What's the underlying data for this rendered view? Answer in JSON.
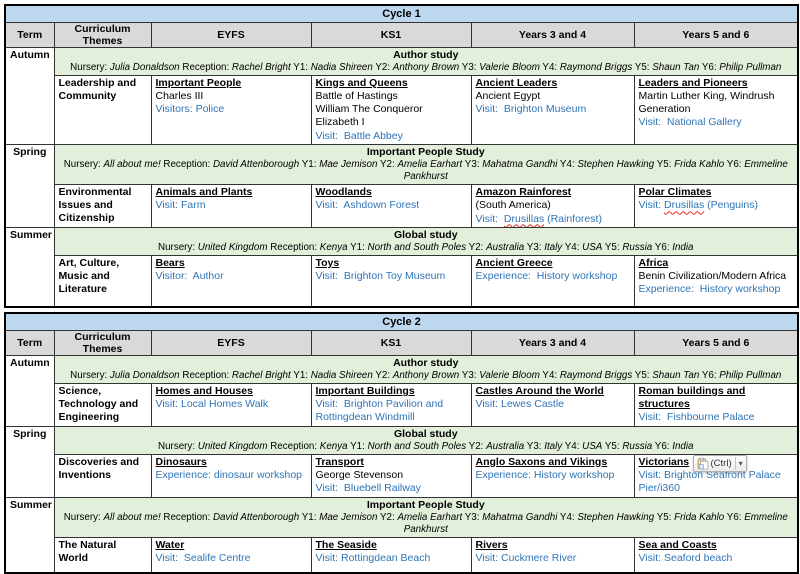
{
  "colors": {
    "cycle_header_blue": "#BDD7EE",
    "column_header_grey": "#D9D9D9",
    "study_row_green": "#E2EFDA",
    "link_blue": "#2E75B6",
    "spellcheck_red": "#E02B20"
  },
  "paste_popup": {
    "icon": "clipboard-icon",
    "label": "(Ctrl)",
    "caret": "▾"
  },
  "studies": {
    "author": {
      "title": "Author study",
      "names": [
        {
          "t": "Nursery: "
        },
        {
          "t": "Julia Donaldson",
          "i": 1
        },
        {
          "t": " Reception: "
        },
        {
          "t": "Rachel Bright",
          "i": 1
        },
        {
          "t": " Y1: "
        },
        {
          "t": "Nadia Shireen",
          "i": 1
        },
        {
          "t": " Y2: "
        },
        {
          "t": "Anthony Brown",
          "i": 1
        },
        {
          "t": " Y3: "
        },
        {
          "t": "Valerie Bloom",
          "i": 1
        },
        {
          "t": " Y4: "
        },
        {
          "t": "Raymond Briggs",
          "i": 1
        },
        {
          "t": " Y5: "
        },
        {
          "t": "Shaun Tan",
          "i": 1
        },
        {
          "t": " Y6: "
        },
        {
          "t": "Philip Pullman",
          "i": 1
        }
      ]
    },
    "important": {
      "title": "Important People Study",
      "names": [
        {
          "t": "Nursery: "
        },
        {
          "t": "All about me!",
          "i": 1
        },
        {
          "t": " Reception: "
        },
        {
          "t": "David Attenborough",
          "i": 1
        },
        {
          "t": " Y1: "
        },
        {
          "t": "Mae Jemison",
          "i": 1
        },
        {
          "t": " Y2: "
        },
        {
          "t": "Amelia Earhart",
          "i": 1
        },
        {
          "t": " Y3: "
        },
        {
          "t": "Mahatma Gandhi",
          "i": 1
        },
        {
          "t": " Y4: "
        },
        {
          "t": "Stephen Hawking",
          "i": 1
        },
        {
          "t": " Y5: "
        },
        {
          "t": "Frida Kahlo",
          "i": 1
        },
        {
          "t": " Y6: "
        },
        {
          "t": "Emmeline Pankhurst",
          "i": 1
        }
      ]
    },
    "global": {
      "title": "Global study",
      "names": [
        {
          "t": "Nursery: "
        },
        {
          "t": "United Kingdom",
          "i": 1
        },
        {
          "t": " Reception: "
        },
        {
          "t": "Kenya",
          "i": 1
        },
        {
          "t": " Y1: "
        },
        {
          "t": "North and South Poles",
          "i": 1
        },
        {
          "t": " Y2: "
        },
        {
          "t": "Australia",
          "i": 1
        },
        {
          "t": " Y3: "
        },
        {
          "t": "Italy",
          "i": 1
        },
        {
          "t": " Y4: "
        },
        {
          "t": "USA",
          "i": 1
        },
        {
          "t": " Y5: "
        },
        {
          "t": "Russia",
          "i": 1
        },
        {
          "t": " Y6: "
        },
        {
          "t": "India",
          "i": 1
        }
      ]
    }
  },
  "cycles": [
    {
      "title": "Cycle 1",
      "header": [
        "Term",
        "Curriculum Themes",
        "EYFS",
        "KS1",
        "Years 3 and 4",
        "Years 5 and 6"
      ],
      "terms": [
        {
          "term": "Autumn",
          "study": "author",
          "theme": "Leadership and Community",
          "cells": [
            {
              "title": "Important People",
              "lines": [
                [
                  {
                    "t": "Charles III"
                  }
                ],
                [
                  {
                    "t": "Visitors: Police",
                    "c": "b"
                  }
                ]
              ]
            },
            {
              "title": "Kings and Queens",
              "lines": [
                [
                  {
                    "t": "Battle of Hastings"
                  }
                ],
                [
                  {
                    "t": "William The Conqueror"
                  }
                ],
                [
                  {
                    "t": "Elizabeth I"
                  }
                ],
                [
                  {
                    "t": "Visit:  Battle Abbey",
                    "c": "b"
                  }
                ]
              ]
            },
            {
              "title": "Ancient Leaders",
              "lines": [
                [
                  {
                    "t": "Ancient Egypt"
                  }
                ],
                [
                  {
                    "t": "Visit:  Brighton Museum",
                    "c": "b"
                  }
                ]
              ]
            },
            {
              "title": "Leaders and Pioneers",
              "lines": [
                [
                  {
                    "t": "Martin Luther King, Windrush Generation"
                  }
                ],
                [
                  {
                    "t": "Visit:  National Gallery",
                    "c": "b"
                  }
                ]
              ]
            }
          ]
        },
        {
          "term": "Spring",
          "study": "important",
          "theme": "Environmental Issues and Citizenship",
          "cells": [
            {
              "title": "Animals and Plants",
              "lines": [
                [
                  {
                    "t": "Visit: Farm",
                    "c": "b"
                  }
                ]
              ]
            },
            {
              "title": "Woodlands",
              "lines": [
                [
                  {
                    "t": "Visit:  Ashdown Forest",
                    "c": "b"
                  }
                ]
              ]
            },
            {
              "title": "Amazon Rainforest",
              "lines": [
                [
                  {
                    "t": "(South America)"
                  }
                ],
                [
                  {
                    "t": "Visit:  ",
                    "c": "b"
                  },
                  {
                    "t": "Drusillas",
                    "c": "bs"
                  },
                  {
                    "t": " (Rainforest)",
                    "c": "b"
                  }
                ]
              ]
            },
            {
              "title": "Polar Climates",
              "lines": [
                [
                  {
                    "t": "Visit: ",
                    "c": "b"
                  },
                  {
                    "t": "Drusillas",
                    "c": "bs"
                  },
                  {
                    "t": " (Penguins)",
                    "c": "b"
                  }
                ]
              ]
            }
          ]
        },
        {
          "term": "Summer",
          "study": "global",
          "theme": "Art, Culture, Music and Literature",
          "cells": [
            {
              "title": "Bears",
              "lines": [
                [
                  {
                    "t": "Visitor:  Author",
                    "c": "b"
                  }
                ]
              ]
            },
            {
              "title": "Toys",
              "lines": [
                [
                  {
                    "t": "Visit:  Brighton Toy Museum",
                    "c": "b"
                  }
                ]
              ]
            },
            {
              "title": "Ancient Greece",
              "lines": [
                [
                  {
                    "t": "Experience:  History workshop",
                    "c": "b"
                  }
                ]
              ]
            },
            {
              "title": "Africa",
              "lines": [
                [
                  {
                    "t": "Benin Civilization/Modern Africa"
                  }
                ],
                [
                  {
                    "t": "Experience:  History workshop",
                    "c": "b"
                  }
                ]
              ]
            }
          ]
        }
      ]
    },
    {
      "title": "Cycle 2",
      "header": [
        "Term",
        "Curriculum Themes",
        "EYFS",
        "KS1",
        "Years 3 and 4",
        "Years 5 and 6"
      ],
      "terms": [
        {
          "term": "Autumn",
          "study": "author",
          "theme": "Science, Technology and Engineering",
          "cells": [
            {
              "title": "Homes and Houses",
              "lines": [
                [
                  {
                    "t": "Visit: Local Homes Walk",
                    "c": "b"
                  }
                ]
              ]
            },
            {
              "title": "Important Buildings",
              "lines": [
                [
                  {
                    "t": "Visit:  Brighton Pavilion and Rottingdean Windmill",
                    "c": "b"
                  }
                ]
              ]
            },
            {
              "title": "Castles Around the World",
              "lines": [
                [
                  {
                    "t": "Visit: Lewes Castle",
                    "c": "b"
                  }
                ]
              ]
            },
            {
              "title": "Roman buildings and structures",
              "lines": [
                [
                  {
                    "t": "Visit:  Fishbourne Palace",
                    "c": "b"
                  }
                ]
              ]
            }
          ]
        },
        {
          "term": "Spring",
          "study": "global",
          "theme": "Discoveries and Inventions",
          "cells": [
            {
              "title": "Dinosaurs",
              "lines": [
                [
                  {
                    "t": "Experience: dinosaur workshop",
                    "c": "b"
                  }
                ]
              ]
            },
            {
              "title": "Transport",
              "lines": [
                [
                  {
                    "t": "George Stevenson"
                  }
                ],
                [
                  {
                    "t": "Visit:  Bluebell Railway",
                    "c": "b"
                  }
                ]
              ]
            },
            {
              "title": "Anglo Saxons and Vikings",
              "lines": [
                [
                  {
                    "t": "Experience: History workshop",
                    "c": "b"
                  }
                ]
              ]
            },
            {
              "title": "Victorians",
              "paste": true,
              "lines": [
                [
                  {
                    "t": "Visit: Brighton Seafront Palace Pier/i360",
                    "c": "b"
                  }
                ]
              ]
            }
          ]
        },
        {
          "term": "Summer",
          "study": "important",
          "theme": "The Natural World",
          "cells": [
            {
              "title": "Water",
              "lines": [
                [
                  {
                    "t": "Visit:  Sealife Centre",
                    "c": "b"
                  }
                ]
              ]
            },
            {
              "title": "The Seaside",
              "lines": [
                [
                  {
                    "t": "Visit: Rottingdean Beach",
                    "c": "b"
                  }
                ]
              ]
            },
            {
              "title": "Rivers",
              "lines": [
                [
                  {
                    "t": "Visit: Cuckmere River",
                    "c": "b"
                  }
                ]
              ]
            },
            {
              "title": "Sea and Coasts",
              "lines": [
                [
                  {
                    "t": "Visit: Seaford beach",
                    "c": "b"
                  }
                ]
              ]
            }
          ]
        }
      ]
    }
  ]
}
